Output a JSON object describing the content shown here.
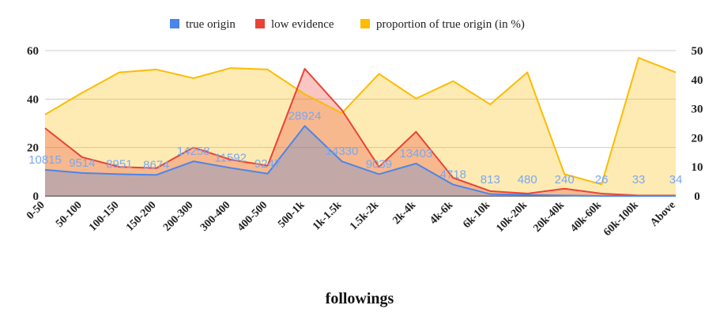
{
  "chart_data": {
    "type": "area",
    "xlabel": "followings",
    "categories": [
      "0-50",
      "50-100",
      "100-150",
      "150-200",
      "200-300",
      "300-400",
      "400-500",
      "500-1k",
      "1k-1.5k",
      "1.5k-2k",
      "2k-4k",
      "4k-6k",
      "6k-10k",
      "10k-20k",
      "20k-40k",
      "40k-60k",
      "60k-100k",
      "Above"
    ],
    "left_axis": {
      "ylim": [
        0,
        60
      ],
      "ticks": [
        0,
        20,
        40,
        60
      ]
    },
    "right_axis": {
      "ylim": [
        0,
        50
      ],
      "ticks": [
        0,
        10,
        20,
        30,
        40,
        50
      ]
    },
    "legend_position": "top-center",
    "series": [
      {
        "name": "true origin",
        "axis": "left",
        "color": "#4a86e8",
        "values": [
          10.8,
          9.5,
          9.0,
          8.7,
          14.3,
          11.6,
          9.2,
          28.9,
          14.3,
          9.0,
          13.4,
          4.7,
          0.8,
          0.5,
          0.2,
          0.03,
          0.03,
          0.03
        ],
        "labels": [
          "10815",
          "9514",
          "8951",
          "8674",
          "14258",
          "11592",
          "9247",
          "28924",
          "14330",
          "9039",
          "13403",
          "4718",
          "813",
          "480",
          "240",
          "26",
          "33",
          "34"
        ]
      },
      {
        "name": "low evidence",
        "axis": "left",
        "color": "#ea4335",
        "values": [
          28.0,
          16.0,
          12.0,
          11.5,
          20.0,
          15.0,
          12.5,
          52.5,
          35.5,
          12.0,
          26.5,
          7.5,
          2.0,
          1.0,
          3.0,
          1.0,
          0.2,
          0.2
        ]
      },
      {
        "name": "proportion of true origin (in %)",
        "axis": "right",
        "color": "#fbbc04",
        "values": [
          28,
          35.5,
          42.5,
          43.5,
          40.5,
          44,
          43.5,
          35,
          28.5,
          42,
          33.5,
          39.5,
          31.5,
          42.5,
          7.5,
          4,
          47.5,
          42.5
        ]
      }
    ]
  }
}
